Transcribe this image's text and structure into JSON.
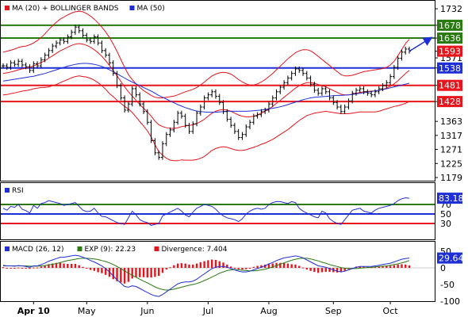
{
  "chart_data": [
    {
      "type": "line",
      "panel": "price",
      "legend": [
        {
          "label": "MA (20) + BOLLINGER BANDS",
          "color": "#e8141c"
        },
        {
          "label": "MA (50)",
          "color": "#1f2fd6"
        }
      ],
      "x_labels": [
        "Apr 10",
        "May",
        "Jun",
        "Jul",
        "Aug",
        "Sep",
        "Oct"
      ],
      "y_ticks": [
        1732,
        1678,
        1636,
        1593,
        1571,
        1538,
        1481,
        1428,
        1363,
        1317,
        1271,
        1225,
        1179
      ],
      "ylim": [
        1179,
        1740
      ],
      "levels": [
        {
          "value": 1678,
          "label": "1678",
          "color": "#2a7a12"
        },
        {
          "value": 1636,
          "label": "1636",
          "color": "#2a7a12"
        },
        {
          "value": 1538,
          "label": "1538",
          "color": "#1f2fd6"
        },
        {
          "value": 1481,
          "label": "1481",
          "color": "#e8141c"
        },
        {
          "value": 1428,
          "label": "1428",
          "color": "#e8141c"
        }
      ],
      "last_price": {
        "value": 1593,
        "label": "1593",
        "color": "#e8141c"
      },
      "close": [
        1545,
        1540,
        1555,
        1550,
        1560,
        1548,
        1542,
        1530,
        1552,
        1545,
        1565,
        1580,
        1595,
        1610,
        1620,
        1630,
        1625,
        1640,
        1655,
        1672,
        1660,
        1645,
        1630,
        1625,
        1640,
        1620,
        1595,
        1580,
        1555,
        1520,
        1480,
        1440,
        1400,
        1420,
        1470,
        1450,
        1420,
        1395,
        1360,
        1300,
        1260,
        1245,
        1290,
        1320,
        1335,
        1360,
        1390,
        1380,
        1350,
        1330,
        1355,
        1390,
        1410,
        1440,
        1450,
        1460,
        1445,
        1425,
        1395,
        1370,
        1350,
        1330,
        1310,
        1320,
        1345,
        1360,
        1380,
        1385,
        1395,
        1400,
        1420,
        1440,
        1460,
        1475,
        1490,
        1505,
        1520,
        1535,
        1530,
        1520,
        1505,
        1485,
        1465,
        1455,
        1470,
        1460,
        1440,
        1425,
        1410,
        1395,
        1410,
        1430,
        1455,
        1465,
        1470,
        1460,
        1455,
        1450,
        1460,
        1470,
        1480,
        1490,
        1510,
        1540,
        1570,
        1590,
        1600,
        1593
      ],
      "ma20": [
        1520,
        1522,
        1525,
        1528,
        1532,
        1535,
        1537,
        1540,
        1545,
        1550,
        1556,
        1562,
        1570,
        1578,
        1586,
        1594,
        1600,
        1606,
        1612,
        1616,
        1618,
        1616,
        1612,
        1606,
        1598,
        1588,
        1576,
        1562,
        1546,
        1530,
        1512,
        1494,
        1476,
        1460,
        1446,
        1432,
        1418,
        1406,
        1394,
        1380,
        1364,
        1352,
        1346,
        1342,
        1340,
        1340,
        1342,
        1346,
        1348,
        1350,
        1352,
        1356,
        1362,
        1370,
        1380,
        1390,
        1396,
        1400,
        1402,
        1400,
        1396,
        1390,
        1384,
        1380,
        1378,
        1378,
        1380,
        1384,
        1390,
        1396,
        1404,
        1412,
        1422,
        1432,
        1442,
        1452,
        1462,
        1472,
        1480,
        1486,
        1490,
        1490,
        1488,
        1484,
        1480,
        1476,
        1470,
        1464,
        1458,
        1452,
        1450,
        1450,
        1452,
        1455,
        1458,
        1460,
        1461,
        1462,
        1463,
        1465,
        1468,
        1472,
        1478,
        1486,
        1496,
        1508,
        1520,
        1530
      ],
      "bb_upper": [
        1590,
        1593,
        1596,
        1600,
        1605,
        1608,
        1610,
        1614,
        1620,
        1628,
        1638,
        1650,
        1664,
        1676,
        1688,
        1698,
        1705,
        1712,
        1718,
        1722,
        1724,
        1722,
        1716,
        1708,
        1698,
        1686,
        1672,
        1656,
        1638,
        1616,
        1592,
        1566,
        1540,
        1516,
        1500,
        1486,
        1474,
        1464,
        1456,
        1448,
        1442,
        1440,
        1440,
        1442,
        1444,
        1446,
        1450,
        1455,
        1460,
        1464,
        1468,
        1474,
        1482,
        1492,
        1502,
        1512,
        1518,
        1522,
        1524,
        1522,
        1518,
        1510,
        1500,
        1492,
        1486,
        1482,
        1482,
        1486,
        1492,
        1500,
        1510,
        1520,
        1532,
        1544,
        1556,
        1568,
        1578,
        1588,
        1594,
        1598,
        1598,
        1594,
        1586,
        1576,
        1566,
        1556,
        1546,
        1536,
        1526,
        1516,
        1512,
        1512,
        1514,
        1518,
        1522,
        1526,
        1528,
        1530,
        1532,
        1534,
        1536,
        1540,
        1548,
        1560,
        1578,
        1598,
        1618,
        1632
      ],
      "bb_lower": [
        1450,
        1451,
        1454,
        1456,
        1459,
        1462,
        1464,
        1466,
        1470,
        1472,
        1474,
        1474,
        1476,
        1480,
        1484,
        1490,
        1495,
        1500,
        1506,
        1510,
        1512,
        1510,
        1508,
        1504,
        1498,
        1490,
        1480,
        1468,
        1454,
        1444,
        1432,
        1422,
        1412,
        1404,
        1392,
        1378,
        1362,
        1348,
        1332,
        1312,
        1286,
        1264,
        1252,
        1242,
        1236,
        1234,
        1234,
        1237,
        1236,
        1236,
        1236,
        1238,
        1242,
        1248,
        1258,
        1268,
        1274,
        1278,
        1280,
        1278,
        1274,
        1270,
        1268,
        1268,
        1270,
        1274,
        1278,
        1282,
        1288,
        1292,
        1298,
        1304,
        1312,
        1320,
        1328,
        1336,
        1346,
        1356,
        1366,
        1374,
        1382,
        1386,
        1390,
        1392,
        1394,
        1396,
        1394,
        1392,
        1390,
        1388,
        1388,
        1388,
        1390,
        1392,
        1394,
        1394,
        1394,
        1394,
        1394,
        1396,
        1400,
        1404,
        1408,
        1412,
        1414,
        1418,
        1422,
        1428
      ],
      "ma50": [
        1495,
        1497,
        1499,
        1501,
        1503,
        1505,
        1507,
        1509,
        1511,
        1514,
        1517,
        1520,
        1524,
        1528,
        1532,
        1536,
        1540,
        1544,
        1547,
        1550,
        1552,
        1553,
        1553,
        1552,
        1550,
        1547,
        1543,
        1538,
        1532,
        1526,
        1519,
        1512,
        1505,
        1498,
        1492,
        1486,
        1480,
        1474,
        1468,
        1462,
        1455,
        1448,
        1442,
        1436,
        1430,
        1424,
        1418,
        1413,
        1408,
        1404,
        1400,
        1397,
        1395,
        1394,
        1393,
        1393,
        1393,
        1394,
        1395,
        1396,
        1396,
        1396,
        1396,
        1396,
        1396,
        1397,
        1398,
        1399,
        1400,
        1402,
        1404,
        1406,
        1408,
        1411,
        1414,
        1418,
        1422,
        1426,
        1430,
        1434,
        1437,
        1440,
        1442,
        1443,
        1444,
        1445,
        1446,
        1447,
        1448,
        1448,
        1449,
        1450,
        1451,
        1453,
        1455,
        1457,
        1459,
        1461,
        1463,
        1465,
        1467,
        1470,
        1473,
        1476,
        1479,
        1482,
        1485,
        1488
      ],
      "projection": [
        [
          1593,
          1636
        ]
      ]
    },
    {
      "type": "line",
      "panel": "rsi",
      "legend": [
        {
          "label": "RSI",
          "color": "#1f2fd6"
        }
      ],
      "ylim": [
        0,
        100
      ],
      "y_ticks": [
        70,
        50,
        30
      ],
      "levels": [
        {
          "value": 70,
          "color": "#2a7a12"
        },
        {
          "value": 50,
          "color": "#1f2fd6"
        },
        {
          "value": 30,
          "color": "#e8141c"
        }
      ],
      "last_value": {
        "value": 83.18,
        "label": "83.18"
      },
      "values": [
        62,
        58,
        66,
        64,
        70,
        60,
        57,
        52,
        68,
        62,
        72,
        74,
        78,
        76,
        74,
        72,
        68,
        70,
        72,
        74,
        66,
        58,
        55,
        56,
        62,
        52,
        45,
        44,
        40,
        36,
        32,
        30,
        28,
        42,
        56,
        48,
        38,
        34,
        32,
        26,
        28,
        30,
        46,
        50,
        54,
        58,
        62,
        56,
        48,
        44,
        54,
        62,
        66,
        70,
        68,
        66,
        60,
        52,
        46,
        42,
        40,
        38,
        34,
        40,
        50,
        56,
        60,
        62,
        60,
        62,
        70,
        74,
        76,
        76,
        74,
        72,
        76,
        74,
        62,
        56,
        52,
        48,
        44,
        42,
        56,
        52,
        40,
        34,
        30,
        28,
        38,
        48,
        58,
        60,
        62,
        56,
        54,
        52,
        58,
        62,
        64,
        66,
        68,
        72,
        78,
        82,
        84,
        83.18
      ]
    },
    {
      "type": "line",
      "panel": "macd",
      "legend": [
        {
          "label": "MACD (26, 12)",
          "color": "#1f2fd6"
        },
        {
          "label": "EXP (9): 22.23",
          "color": "#2a7a12"
        },
        {
          "label": "Divergence: 7.404",
          "color": "#e8141c"
        }
      ],
      "ylim": [
        -100,
        62
      ],
      "y_ticks": [
        50,
        0,
        -50,
        -100
      ],
      "last_value": {
        "value": 29.64,
        "label": "29.64"
      },
      "macd": [
        8,
        6,
        6,
        5,
        7,
        6,
        4,
        2,
        6,
        6,
        10,
        14,
        20,
        24,
        28,
        32,
        32,
        34,
        36,
        38,
        36,
        32,
        28,
        22,
        18,
        12,
        6,
        -2,
        -12,
        -24,
        -36,
        -46,
        -56,
        -58,
        -54,
        -56,
        -62,
        -68,
        -74,
        -80,
        -84,
        -86,
        -80,
        -72,
        -64,
        -56,
        -48,
        -44,
        -42,
        -42,
        -40,
        -34,
        -26,
        -18,
        -10,
        -2,
        2,
        4,
        4,
        2,
        -2,
        -6,
        -10,
        -12,
        -12,
        -10,
        -6,
        -2,
        2,
        6,
        12,
        16,
        22,
        26,
        30,
        32,
        34,
        36,
        34,
        30,
        24,
        18,
        12,
        6,
        4,
        2,
        -2,
        -6,
        -10,
        -12,
        -10,
        -6,
        -2,
        2,
        4,
        4,
        4,
        4,
        6,
        8,
        10,
        12,
        14,
        18,
        22,
        26,
        28,
        29.64
      ],
      "signal": [
        6,
        6,
        6,
        6,
        6,
        6,
        6,
        5,
        5,
        5,
        6,
        7,
        9,
        11,
        13,
        16,
        19,
        22,
        24,
        26,
        28,
        29,
        29,
        28,
        27,
        25,
        22,
        19,
        15,
        10,
        4,
        -2,
        -9,
        -16,
        -22,
        -28,
        -34,
        -40,
        -45,
        -51,
        -57,
        -62,
        -65,
        -67,
        -66,
        -64,
        -61,
        -58,
        -55,
        -52,
        -50,
        -47,
        -43,
        -38,
        -33,
        -27,
        -22,
        -16,
        -12,
        -8,
        -6,
        -5,
        -6,
        -7,
        -8,
        -9,
        -9,
        -8,
        -6,
        -4,
        -1,
        3,
        7,
        11,
        15,
        19,
        23,
        26,
        28,
        29,
        29,
        27,
        24,
        21,
        17,
        14,
        10,
        7,
        4,
        1,
        -1,
        -2,
        -2,
        -2,
        -1,
        0,
        1,
        2,
        3,
        4,
        5,
        6,
        8,
        10,
        12,
        15,
        18,
        22.23
      ],
      "divergence": [
        2,
        0,
        0,
        -1,
        1,
        0,
        -2,
        -3,
        1,
        1,
        4,
        7,
        11,
        13,
        15,
        16,
        13,
        12,
        12,
        12,
        8,
        3,
        -1,
        -6,
        -9,
        -13,
        -16,
        -21,
        -27,
        -34,
        -40,
        -44,
        -47,
        -42,
        -32,
        -28,
        -28,
        -28,
        -29,
        -29,
        -27,
        -24,
        -15,
        -5,
        2,
        8,
        13,
        14,
        13,
        10,
        10,
        13,
        17,
        20,
        23,
        25,
        24,
        20,
        16,
        10,
        4,
        -1,
        -4,
        -5,
        -4,
        -1,
        3,
        6,
        8,
        10,
        13,
        13,
        15,
        15,
        15,
        13,
        11,
        10,
        6,
        1,
        -5,
        -9,
        -12,
        -15,
        -13,
        -12,
        -12,
        -13,
        -14,
        -13,
        -9,
        -4,
        0,
        4,
        5,
        4,
        3,
        2,
        3,
        4,
        5,
        6,
        6,
        8,
        10,
        11,
        10,
        7.404
      ]
    }
  ]
}
